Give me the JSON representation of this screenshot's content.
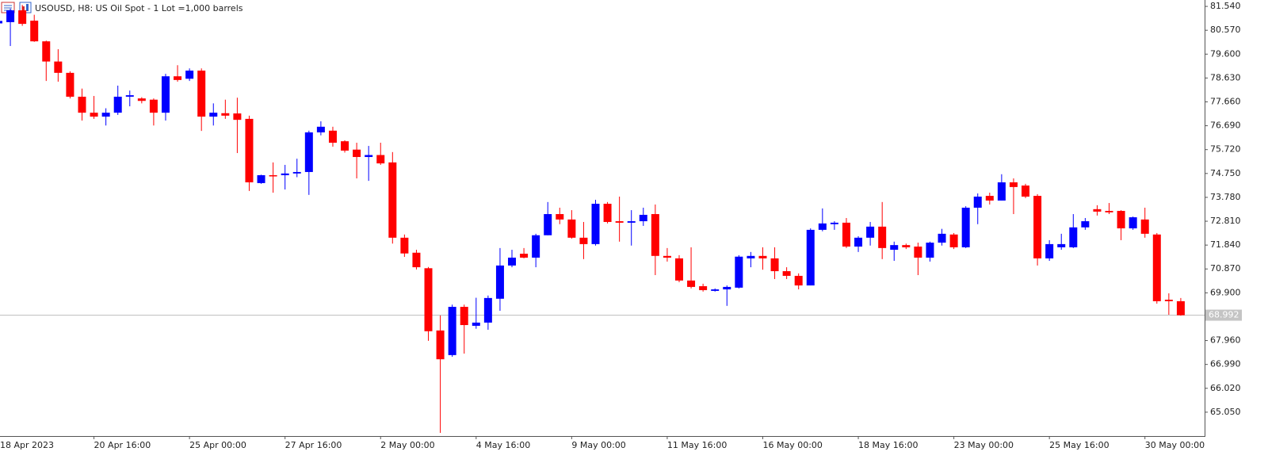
{
  "chart_data": {
    "type": "candlestick",
    "title": "USOUSD, H8:  US Oil Spot - 1 Lot =1,000 barrels",
    "categories": [
      "18 Apr 2023",
      null,
      null,
      null,
      null,
      null,
      null,
      null,
      "20 Apr 16:00",
      null,
      null,
      null,
      null,
      null,
      null,
      null,
      "25 Apr 00:00",
      null,
      null,
      null,
      null,
      null,
      null,
      null,
      "27 Apr 16:00",
      null,
      null,
      null,
      null,
      null,
      null,
      null,
      "2 May 00:00",
      null,
      null,
      null,
      null,
      null,
      null,
      null,
      "4 May 16:00",
      null,
      null,
      null,
      null,
      null,
      null,
      null,
      "9 May 00:00",
      null,
      null,
      null,
      null,
      null,
      null,
      null,
      "11 May 16:00",
      null,
      null,
      null,
      null,
      null,
      null,
      null,
      "16 May 00:00",
      null,
      null,
      null,
      null,
      null,
      null,
      null,
      "18 May 16:00",
      null,
      null,
      null,
      null,
      null,
      null,
      null,
      "23 May 00:00",
      null,
      null,
      null,
      null,
      null,
      null,
      null,
      "25 May 16:00",
      null,
      null,
      null,
      null,
      null,
      null,
      null,
      "30 May 00:00",
      null,
      null,
      null
    ],
    "open": [
      80.85,
      80.9,
      81.38,
      80.96,
      80.12,
      79.3,
      78.84,
      77.87,
      77.22,
      77.06,
      77.22,
      77.87,
      77.8,
      77.75,
      77.22,
      78.7,
      78.6,
      78.93,
      77.06,
      77.2,
      77.19,
      76.97,
      74.36,
      74.68,
      74.68,
      74.75,
      74.81,
      76.42,
      76.49,
      76.06,
      75.72,
      75.42,
      75.5,
      75.2,
      72.14,
      71.53,
      70.9,
      68.37,
      67.37,
      69.33,
      68.56,
      68.69,
      69.66,
      71.01,
      71.49,
      71.33,
      72.24,
      73.1,
      72.88,
      72.14,
      71.88,
      73.52,
      72.81,
      72.75,
      72.81,
      73.1,
      71.4,
      71.3,
      70.4,
      70.17,
      69.98,
      70.04,
      70.11,
      71.3,
      71.4,
      71.3,
      70.78,
      70.59,
      70.2,
      72.46,
      72.69,
      72.75,
      71.78,
      72.14,
      72.59,
      71.65,
      71.84,
      71.78,
      71.33,
      71.94,
      72.27,
      71.75,
      73.36,
      73.84,
      73.65,
      74.39,
      74.26,
      73.84,
      71.3,
      71.75,
      71.75,
      72.56,
      73.3,
      73.23,
      73.23,
      72.52,
      72.88,
      72.27,
      69.62,
      69.56
    ],
    "high": [
      81.0,
      81.45,
      81.6,
      81.2,
      80.15,
      79.8,
      78.9,
      78.2,
      77.9,
      77.4,
      78.32,
      78.12,
      77.85,
      77.8,
      78.8,
      79.15,
      79.02,
      79.02,
      77.6,
      77.75,
      77.83,
      77.1,
      74.7,
      75.2,
      75.1,
      75.35,
      76.49,
      76.87,
      76.65,
      76.1,
      76.0,
      75.87,
      76.0,
      75.62,
      72.27,
      71.65,
      70.95,
      68.98,
      69.42,
      69.42,
      69.7,
      69.79,
      71.72,
      71.65,
      71.72,
      72.3,
      73.59,
      73.36,
      73.26,
      72.78,
      73.68,
      73.59,
      73.81,
      73.26,
      73.36,
      73.49,
      71.72,
      71.43,
      71.75,
      70.27,
      70.08,
      70.2,
      71.43,
      71.56,
      71.75,
      71.75,
      70.94,
      70.69,
      72.52,
      73.33,
      72.81,
      72.94,
      72.2,
      72.78,
      73.59,
      71.98,
      71.9,
      71.94,
      71.98,
      72.5,
      72.33,
      73.42,
      73.94,
      73.97,
      74.72,
      74.55,
      74.33,
      73.91,
      72.04,
      72.3,
      73.1,
      72.94,
      73.46,
      73.55,
      73.26,
      73.0,
      73.36,
      72.33,
      69.88,
      69.69
    ],
    "low": [
      80.8,
      79.93,
      80.75,
      80.1,
      78.51,
      78.48,
      77.8,
      76.9,
      76.97,
      76.7,
      77.13,
      77.48,
      77.6,
      76.7,
      76.9,
      78.48,
      78.51,
      76.48,
      76.7,
      76.97,
      75.58,
      74.04,
      74.33,
      73.97,
      74.1,
      74.6,
      73.88,
      76.3,
      75.84,
      75.6,
      74.55,
      74.45,
      75.1,
      71.9,
      71.36,
      70.85,
      67.95,
      64.21,
      67.3,
      67.43,
      68.44,
      68.4,
      69.17,
      70.94,
      71.3,
      70.94,
      72.24,
      72.69,
      72.1,
      71.27,
      71.82,
      72.72,
      71.98,
      71.82,
      72.62,
      70.62,
      71.17,
      70.33,
      70.08,
      69.95,
      69.95,
      69.37,
      70.08,
      70.94,
      70.84,
      70.46,
      70.46,
      70.04,
      70.2,
      72.4,
      72.46,
      71.72,
      71.56,
      71.82,
      71.27,
      71.2,
      71.68,
      70.62,
      71.17,
      71.82,
      71.68,
      71.72,
      72.69,
      73.49,
      73.65,
      73.1,
      73.75,
      71.01,
      71.2,
      71.65,
      71.72,
      72.46,
      73.04,
      73.1,
      72.04,
      72.46,
      72.14,
      69.46,
      69.01,
      68.97
    ],
    "close": [
      80.95,
      81.38,
      80.83,
      80.12,
      79.3,
      78.84,
      77.87,
      77.22,
      77.06,
      77.22,
      77.87,
      77.93,
      77.7,
      77.22,
      78.7,
      78.55,
      78.93,
      77.06,
      77.22,
      77.1,
      76.93,
      74.39,
      74.68,
      74.65,
      74.75,
      74.81,
      76.42,
      76.65,
      76.0,
      75.68,
      75.42,
      75.5,
      75.16,
      72.14,
      71.5,
      70.94,
      68.34,
      67.2,
      69.33,
      68.59,
      68.69,
      69.69,
      71.01,
      71.33,
      71.33,
      72.24,
      73.1,
      72.88,
      72.14,
      71.88,
      73.52,
      72.78,
      72.75,
      72.81,
      73.07,
      71.4,
      71.33,
      70.4,
      70.14,
      70.01,
      70.04,
      70.14,
      71.37,
      71.4,
      71.3,
      70.78,
      70.59,
      70.2,
      72.46,
      72.72,
      72.75,
      71.78,
      72.14,
      72.59,
      71.72,
      71.84,
      71.75,
      71.33,
      71.94,
      72.3,
      71.75,
      73.36,
      73.81,
      73.65,
      74.39,
      74.2,
      73.81,
      71.3,
      71.88,
      71.88,
      72.56,
      72.81,
      73.2,
      73.17,
      72.52,
      72.97,
      72.3,
      69.56,
      69.56,
      68.99
    ],
    "up_color": "#0000ff",
    "down_color": "#ff0000",
    "current_price": 68.992,
    "ylim": [
      64.08,
      81.8
    ],
    "yticks": [
      {
        "value": 81.54,
        "label": "81.540"
      },
      {
        "value": 80.57,
        "label": "80.570"
      },
      {
        "value": 79.6,
        "label": "79.600"
      },
      {
        "value": 78.63,
        "label": "78.630"
      },
      {
        "value": 77.66,
        "label": "77.660"
      },
      {
        "value": 76.69,
        "label": "76.690"
      },
      {
        "value": 75.72,
        "label": "75.720"
      },
      {
        "value": 74.75,
        "label": "74.750"
      },
      {
        "value": 73.78,
        "label": "73.780"
      },
      {
        "value": 72.81,
        "label": "72.810"
      },
      {
        "value": 71.84,
        "label": "71.840"
      },
      {
        "value": 70.87,
        "label": "70.870"
      },
      {
        "value": 69.9,
        "label": "69.900"
      },
      {
        "value": 67.96,
        "label": "67.960"
      },
      {
        "value": 66.99,
        "label": "66.990"
      },
      {
        "value": 66.02,
        "label": "66.020"
      },
      {
        "value": 65.05,
        "label": "65.050"
      }
    ]
  }
}
